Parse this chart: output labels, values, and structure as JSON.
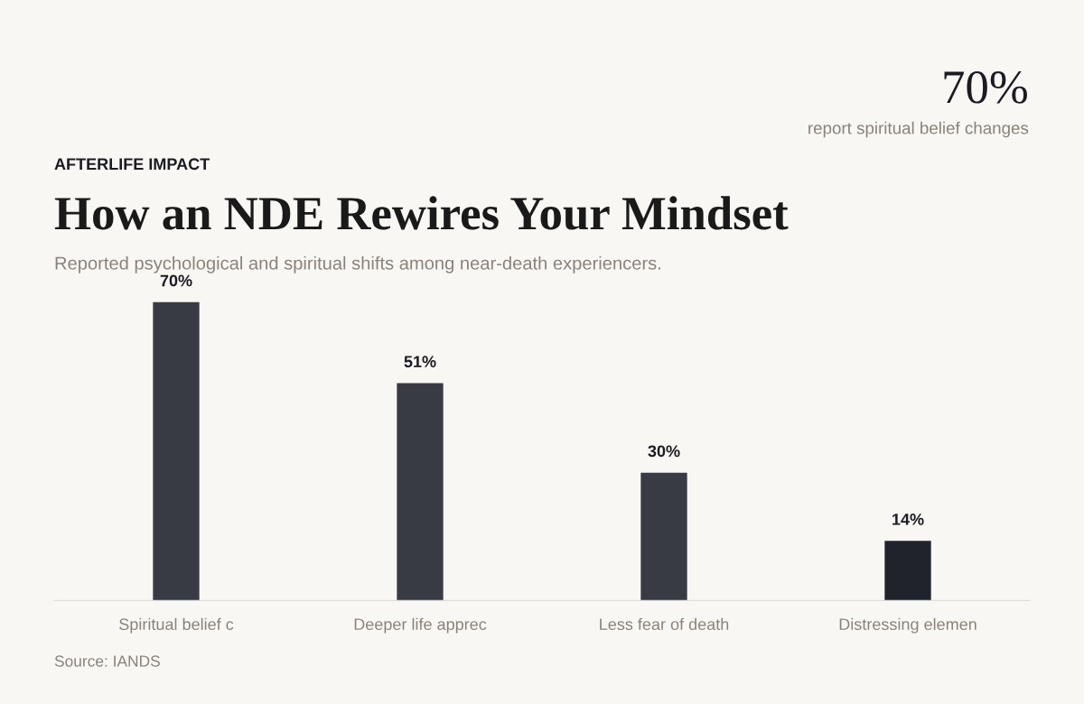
{
  "chart_data": {
    "type": "bar",
    "title": "How an NDE Rewires Your Mindset",
    "subtitle": "Reported psychological and spiritual shifts among near-death experiencers.",
    "annotations": [
      "AFTERLIFE IMPACT",
      "70%",
      "report spiritual belief changes",
      "Source: IANDS"
    ],
    "categories": [
      "Spiritual belief c",
      "Deeper life apprec",
      "Less fear of death",
      "Distressing elemen"
    ],
    "values": [
      70,
      51,
      30,
      14
    ],
    "colors": [
      "#383a44",
      "#383a44",
      "#383a44",
      "#20232c"
    ],
    "value_labels": [
      "70%",
      "51%",
      "30%",
      "14%"
    ],
    "grid": false,
    "legend": false
  }
}
